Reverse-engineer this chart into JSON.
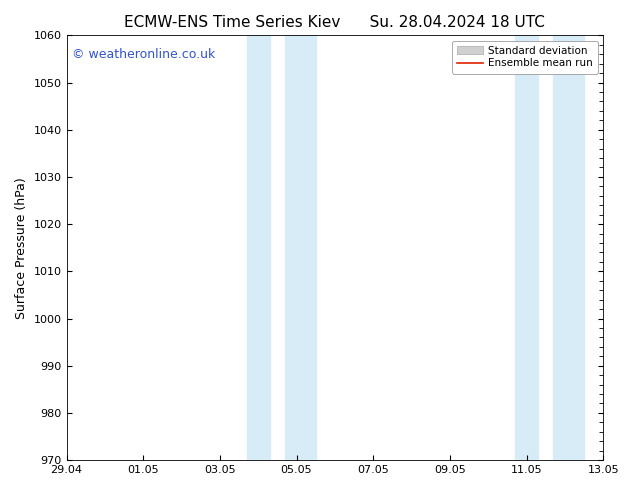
{
  "title_left": "ECMW-ENS Time Series Kiev",
  "title_right": "Su. 28.04.2024 18 UTC",
  "ylabel": "Surface Pressure (hPa)",
  "ylim": [
    970,
    1060
  ],
  "yticks": [
    970,
    980,
    990,
    1000,
    1010,
    1020,
    1030,
    1040,
    1050,
    1060
  ],
  "xtick_labels": [
    "29.04",
    "01.05",
    "03.05",
    "05.05",
    "07.05",
    "09.05",
    "11.05",
    "13.05"
  ],
  "xtick_positions": [
    0,
    2,
    4,
    6,
    8,
    10,
    12,
    14
  ],
  "shaded_bands": [
    {
      "x_start": 4.5,
      "x_end": 5.5
    },
    {
      "x_start": 5.5,
      "x_end": 6.5
    },
    {
      "x_start": 11.5,
      "x_end": 12.5
    },
    {
      "x_start": 12.5,
      "x_end": 13.0
    }
  ],
  "shaded_color": "#d8ecf8",
  "background_color": "#ffffff",
  "watermark_text": "© weatheronline.co.uk",
  "watermark_color": "#3355cc",
  "legend_std_label": "Standard deviation",
  "legend_mean_label": "Ensemble mean run",
  "legend_std_color": "#d0d0d0",
  "legend_mean_color": "#dd2200",
  "title_fontsize": 11,
  "axis_fontsize": 9,
  "tick_fontsize": 8,
  "watermark_fontsize": 9
}
